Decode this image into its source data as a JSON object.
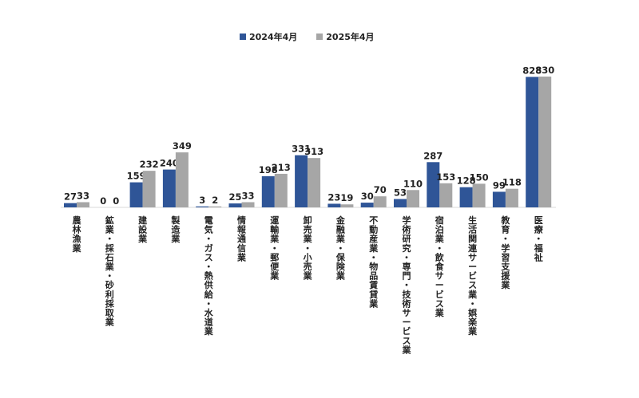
{
  "chart_data": {
    "type": "bar",
    "categories": [
      "農林漁業",
      "鉱業・採石業・砂利採取業",
      "建設業",
      "製造業",
      "電気・ガス・熱供給・水道業",
      "情報通信業",
      "運輸業・郵便業",
      "卸売業・小売業",
      "金融業・保険業",
      "不動産業・物品賃貸業",
      "学術研究・専門・技術サービス業",
      "宿泊業・飲食サービス業",
      "生活関連サービス業・娯楽業",
      "教育・学習支援業",
      "医療・福祉"
    ],
    "series": [
      {
        "name": "2024年4月",
        "color": "#2f5597",
        "values": [
          27,
          0,
          159,
          240,
          3,
          25,
          198,
          331,
          23,
          30,
          53,
          287,
          128,
          99,
          828
        ]
      },
      {
        "name": "2025年4月",
        "color": "#a6a6a6",
        "values": [
          33,
          0,
          232,
          349,
          2,
          33,
          213,
          313,
          19,
          70,
          110,
          153,
          150,
          118,
          830
        ]
      }
    ],
    "ylim": [
      0,
      830
    ],
    "legend_position": "top-center",
    "grid": false
  }
}
